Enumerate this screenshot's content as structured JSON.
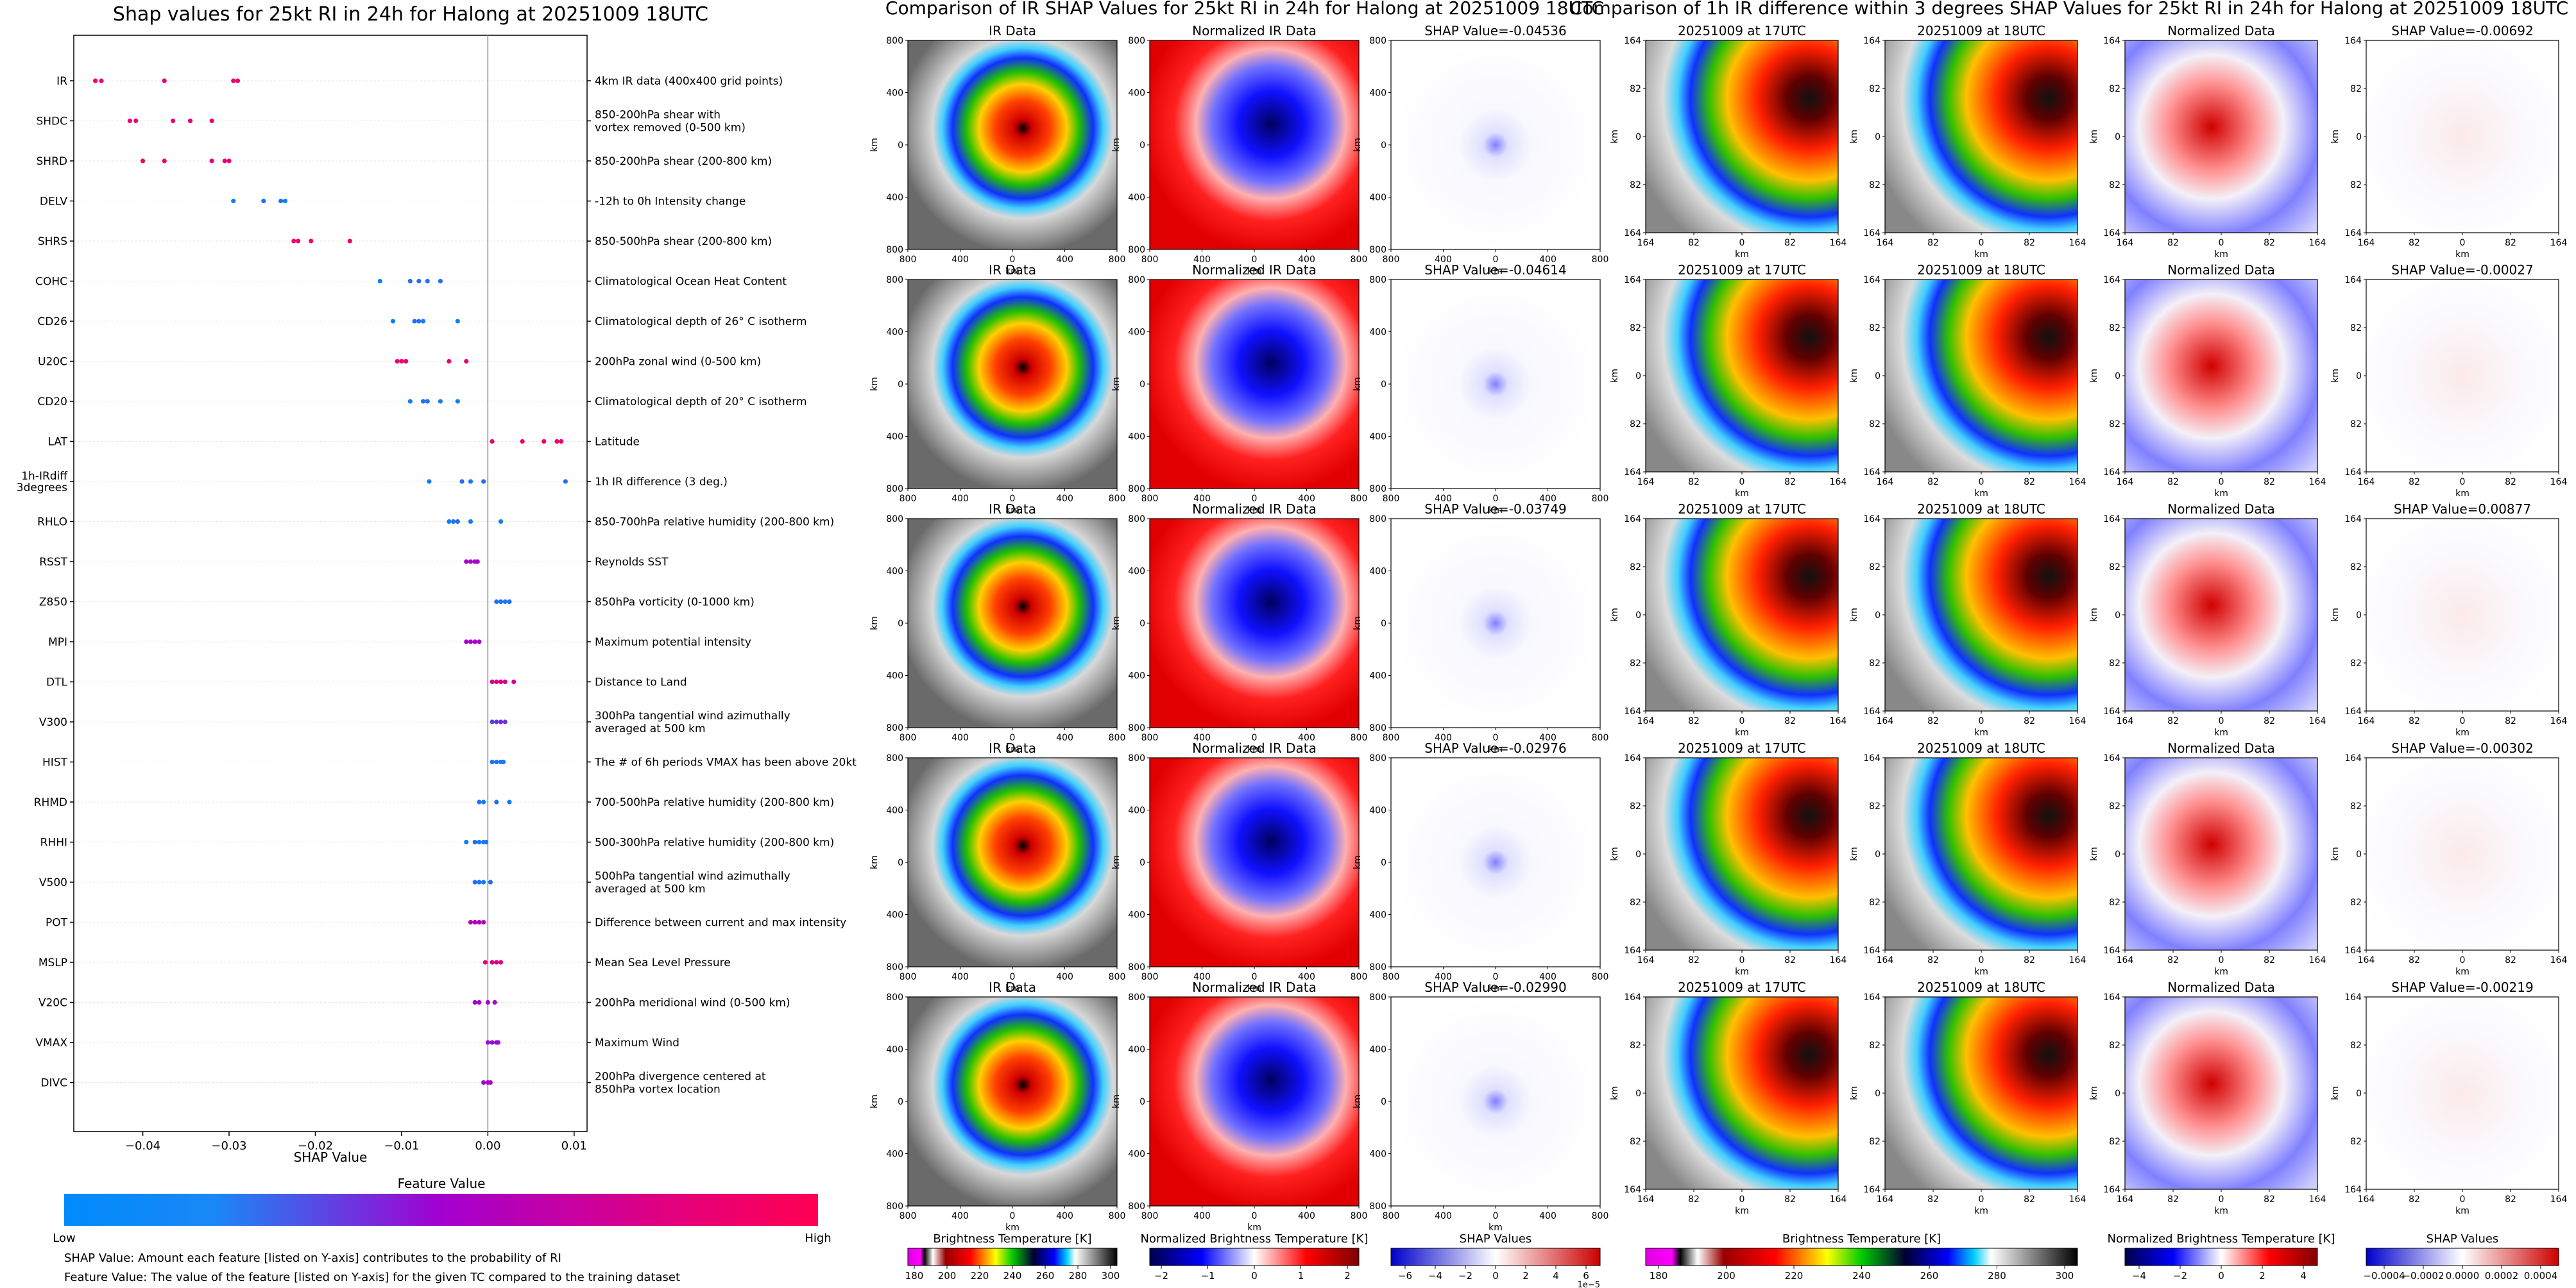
{
  "left": {
    "title": "Shap values for 25kt RI in 24h for Halong at 20251009 18UTC",
    "xlabel": "SHAP Value",
    "xticks": [
      "−0.04",
      "−0.03",
      "−0.02",
      "−0.01",
      "0.00",
      "0.01"
    ],
    "colorbar_title": "Feature Value",
    "low_label": "Low",
    "high_label": "High",
    "note1": "SHAP Value: Amount each feature [listed on Y-axis] contributes to the probability of RI",
    "note2": "Feature Value: The value of the feature [listed on Y-axis] for the given TC compared to the training dataset"
  },
  "mid": {
    "suptitle": "Comparison of IR SHAP Values for 25kt RI in 24h for Halong at 20251009 18UTC",
    "col_titles": [
      "IR Data",
      "Normalized IR Data"
    ],
    "shap_titles": [
      "SHAP Value=-0.04536",
      "SHAP Value=-0.04614",
      "SHAP Value=-0.03749",
      "SHAP Value=-0.02976",
      "SHAP Value=-0.02990"
    ],
    "ticks": [
      "800",
      "400",
      "0",
      "400",
      "800"
    ],
    "axis_label": "km",
    "cbars": [
      {
        "label": "Brightness Temperature [K]",
        "ticks": [
          "180",
          "200",
          "220",
          "240",
          "260",
          "280",
          "300"
        ]
      },
      {
        "label": "Normalized Brightness Temperature [K]",
        "ticks": [
          "−2",
          "−1",
          "0",
          "1",
          "2"
        ]
      },
      {
        "label": "SHAP Values",
        "ticks": [
          "−6",
          "−4",
          "−2",
          "0",
          "2",
          "4",
          "6"
        ],
        "offset": "1e−5"
      }
    ]
  },
  "right": {
    "suptitle": "Comparison of 1h IR difference within 3 degrees SHAP Values for 25kt RI in 24h for Halong at 20251009 18UTC",
    "col_titles": [
      "20251009 at 17UTC",
      "20251009 at 18UTC",
      "Normalized Data"
    ],
    "shap_titles": [
      "SHAP Value=-0.00692",
      "SHAP Value=-0.00027",
      "SHAP Value=0.00877",
      "SHAP Value=-0.00302",
      "SHAP Value=-0.00219"
    ],
    "ticks": [
      "164",
      "82",
      "0",
      "82",
      "164"
    ],
    "axis_label": "km",
    "cbars": [
      {
        "label": "Brightness Temperature [K]",
        "ticks": [
          "180",
          "200",
          "220",
          "240",
          "260",
          "280",
          "300"
        ]
      },
      {
        "label": "Normalized Brightness Temperature [K]",
        "ticks": [
          "−4",
          "−2",
          "0",
          "2",
          "4"
        ]
      },
      {
        "label": "SHAP Values",
        "ticks": [
          "−0.0004",
          "−0.0002",
          "0.0000",
          "0.0002",
          "0.0004"
        ]
      }
    ]
  },
  "colors": {
    "low": "#008bfb",
    "mid": "#a300d0",
    "high": "#ff0052"
  },
  "chart_data": [
    {
      "type": "scatter",
      "title": "Shap values for 25kt RI in 24h for Halong at 20251009 18UTC",
      "xlabel": "SHAP Value",
      "xlim": [
        -0.048,
        0.0115
      ],
      "features": [
        {
          "name": "IR",
          "desc": "4km IR data (400x400 grid points)",
          "points": [
            [
              -0.0455,
              0.9
            ],
            [
              -0.0448,
              0.9
            ],
            [
              -0.0375,
              0.85
            ],
            [
              -0.0295,
              0.9
            ],
            [
              -0.029,
              0.9
            ]
          ]
        },
        {
          "name": "SHDC",
          "desc": "850-200hPa shear with\nvortex removed (0-500 km)",
          "points": [
            [
              -0.0415,
              0.9
            ],
            [
              -0.0408,
              0.9
            ],
            [
              -0.0365,
              0.9
            ],
            [
              -0.0345,
              0.85
            ],
            [
              -0.032,
              0.9
            ]
          ]
        },
        {
          "name": "SHRD",
          "desc": "850-200hPa shear (200-800 km)",
          "points": [
            [
              -0.04,
              0.9
            ],
            [
              -0.0375,
              0.9
            ],
            [
              -0.032,
              0.85
            ],
            [
              -0.0305,
              0.85
            ],
            [
              -0.03,
              0.85
            ]
          ]
        },
        {
          "name": "DELV",
          "desc": "-12h to 0h Intensity change",
          "points": [
            [
              -0.0295,
              0.05
            ],
            [
              -0.026,
              0.1
            ],
            [
              -0.024,
              0.1
            ],
            [
              -0.0235,
              0.05
            ]
          ]
        },
        {
          "name": "SHRS",
          "desc": "850-500hPa shear (200-800 km)",
          "points": [
            [
              -0.0225,
              0.9
            ],
            [
              -0.022,
              0.9
            ],
            [
              -0.0205,
              0.9
            ],
            [
              -0.016,
              0.9
            ]
          ]
        },
        {
          "name": "COHC",
          "desc": "Climatological Ocean Heat Content",
          "points": [
            [
              -0.0125,
              0.05
            ],
            [
              -0.009,
              0.1
            ],
            [
              -0.008,
              0.1
            ],
            [
              -0.007,
              0.1
            ],
            [
              -0.0055,
              0.1
            ]
          ]
        },
        {
          "name": "CD26",
          "desc": "Climatological depth of 26° C isotherm",
          "points": [
            [
              -0.011,
              0.05
            ],
            [
              -0.0085,
              0.1
            ],
            [
              -0.008,
              0.1
            ],
            [
              -0.0075,
              0.05
            ],
            [
              -0.0035,
              0.05
            ]
          ]
        },
        {
          "name": "U20C",
          "desc": "200hPa zonal wind (0-500 km)",
          "points": [
            [
              -0.0105,
              0.9
            ],
            [
              -0.01,
              0.9
            ],
            [
              -0.0095,
              0.85
            ],
            [
              -0.0045,
              0.9
            ],
            [
              -0.0025,
              0.9
            ]
          ]
        },
        {
          "name": "CD20",
          "desc": "Climatological depth of 20° C isotherm",
          "points": [
            [
              -0.009,
              0.05
            ],
            [
              -0.0075,
              0.1
            ],
            [
              -0.007,
              0.1
            ],
            [
              -0.0055,
              0.05
            ],
            [
              -0.0035,
              0.05
            ]
          ]
        },
        {
          "name": "LAT",
          "desc": "Latitude",
          "points": [
            [
              0.0005,
              0.9
            ],
            [
              0.004,
              0.9
            ],
            [
              0.0065,
              0.9
            ],
            [
              0.008,
              0.9
            ],
            [
              0.0085,
              0.9
            ]
          ]
        },
        {
          "name": "1h-IRdiff\n3degrees",
          "desc": "1h IR difference (3 deg.)",
          "points": [
            [
              -0.0068,
              0.05
            ],
            [
              -0.003,
              0.1
            ],
            [
              -0.002,
              0.05
            ],
            [
              -0.0005,
              0.1
            ],
            [
              0.009,
              0.1
            ]
          ]
        },
        {
          "name": "RHLO",
          "desc": "850-700hPa relative humidity (200-800 km)",
          "points": [
            [
              -0.0045,
              0.05
            ],
            [
              -0.004,
              0.1
            ],
            [
              -0.0035,
              0.1
            ],
            [
              -0.002,
              0.05
            ],
            [
              0.0015,
              0.05
            ]
          ]
        },
        {
          "name": "RSST",
          "desc": "Reynolds SST",
          "points": [
            [
              -0.0025,
              0.5
            ],
            [
              -0.002,
              0.55
            ],
            [
              -0.0015,
              0.55
            ],
            [
              -0.0012,
              0.5
            ]
          ]
        },
        {
          "name": "Z850",
          "desc": "850hPa vorticity (0-1000 km)",
          "points": [
            [
              0.001,
              0.1
            ],
            [
              0.0015,
              0.1
            ],
            [
              0.002,
              0.05
            ],
            [
              0.0025,
              0.1
            ]
          ]
        },
        {
          "name": "MPI",
          "desc": "Maximum potential intensity",
          "points": [
            [
              -0.0025,
              0.5
            ],
            [
              -0.002,
              0.55
            ],
            [
              -0.0015,
              0.55
            ],
            [
              -0.001,
              0.5
            ]
          ]
        },
        {
          "name": "DTL",
          "desc": "Distance to Land",
          "points": [
            [
              0.0005,
              0.8
            ],
            [
              0.001,
              0.8
            ],
            [
              0.0015,
              0.8
            ],
            [
              0.002,
              0.75
            ],
            [
              0.003,
              0.75
            ]
          ]
        },
        {
          "name": "V300",
          "desc": "300hPa tangential wind azimuthally\naveraged at 500 km",
          "points": [
            [
              0.0005,
              0.3
            ],
            [
              0.001,
              0.3
            ],
            [
              0.0015,
              0.35
            ],
            [
              0.002,
              0.3
            ]
          ]
        },
        {
          "name": "HIST",
          "desc": "The # of 6h periods VMAX has been above 20kt",
          "points": [
            [
              0.0005,
              0.1
            ],
            [
              0.001,
              0.1
            ],
            [
              0.0015,
              0.1
            ],
            [
              0.0018,
              0.05
            ]
          ]
        },
        {
          "name": "RHMD",
          "desc": "700-500hPa relative humidity (200-800 km)",
          "points": [
            [
              -0.001,
              0.1
            ],
            [
              -0.0005,
              0.05
            ],
            [
              0.001,
              0.1
            ],
            [
              0.0025,
              0.05
            ]
          ]
        },
        {
          "name": "RHHI",
          "desc": "500-300hPa relative humidity (200-800 km)",
          "points": [
            [
              -0.0025,
              0.05
            ],
            [
              -0.0015,
              0.1
            ],
            [
              -0.001,
              0.05
            ],
            [
              -0.0005,
              0.1
            ],
            [
              -0.0002,
              0.05
            ]
          ]
        },
        {
          "name": "V500",
          "desc": "500hPa tangential wind azimuthally\naveraged at 500 km",
          "points": [
            [
              -0.0015,
              0.1
            ],
            [
              -0.001,
              0.1
            ],
            [
              -0.0005,
              0.05
            ],
            [
              0.0003,
              0.1
            ]
          ]
        },
        {
          "name": "POT",
          "desc": "Difference between current and max intensity",
          "points": [
            [
              -0.002,
              0.6
            ],
            [
              -0.0015,
              0.6
            ],
            [
              -0.001,
              0.55
            ],
            [
              -0.0005,
              0.6
            ]
          ]
        },
        {
          "name": "MSLP",
          "desc": "Mean Sea Level Pressure",
          "points": [
            [
              -0.0003,
              0.85
            ],
            [
              0.0005,
              0.8
            ],
            [
              0.001,
              0.8
            ],
            [
              0.0015,
              0.85
            ]
          ]
        },
        {
          "name": "V20C",
          "desc": "200hPa meridional wind (0-500 km)",
          "points": [
            [
              -0.0015,
              0.5
            ],
            [
              -0.001,
              0.55
            ],
            [
              0.0,
              0.5
            ],
            [
              0.0008,
              0.55
            ]
          ]
        },
        {
          "name": "VMAX",
          "desc": "Maximum Wind",
          "points": [
            [
              0.0,
              0.45
            ],
            [
              0.0005,
              0.45
            ],
            [
              0.001,
              0.5
            ],
            [
              0.0012,
              0.45
            ]
          ]
        },
        {
          "name": "DIVC",
          "desc": "200hPa divergence centered at\n850hPa vortex location",
          "points": [
            [
              -0.0005,
              0.5
            ],
            [
              0.0,
              0.5
            ],
            [
              0.0003,
              0.55
            ]
          ]
        }
      ]
    },
    {
      "type": "heatmap",
      "title": "Comparison of IR SHAP Values for 25kt RI in 24h for Halong at 20251009 18UTC",
      "columns": [
        "IR Data",
        "Normalized IR Data",
        "SHAP Values"
      ],
      "rows": 5,
      "shap_values": [
        -0.04536,
        -0.04614,
        -0.03749,
        -0.02976,
        -0.0299
      ],
      "xlim": [
        -800,
        800
      ],
      "ylim": [
        -800,
        800
      ]
    },
    {
      "type": "heatmap",
      "title": "Comparison of 1h IR difference within 3 degrees SHAP Values for 25kt RI in 24h for Halong at 20251009 18UTC",
      "columns": [
        "20251009 at 17UTC",
        "20251009 at 18UTC",
        "Normalized Data",
        "SHAP Values"
      ],
      "rows": 5,
      "shap_values": [
        -0.00692,
        -0.00027,
        0.00877,
        -0.00302,
        -0.00219
      ],
      "xlim": [
        -164,
        164
      ],
      "ylim": [
        -164,
        164
      ]
    }
  ]
}
